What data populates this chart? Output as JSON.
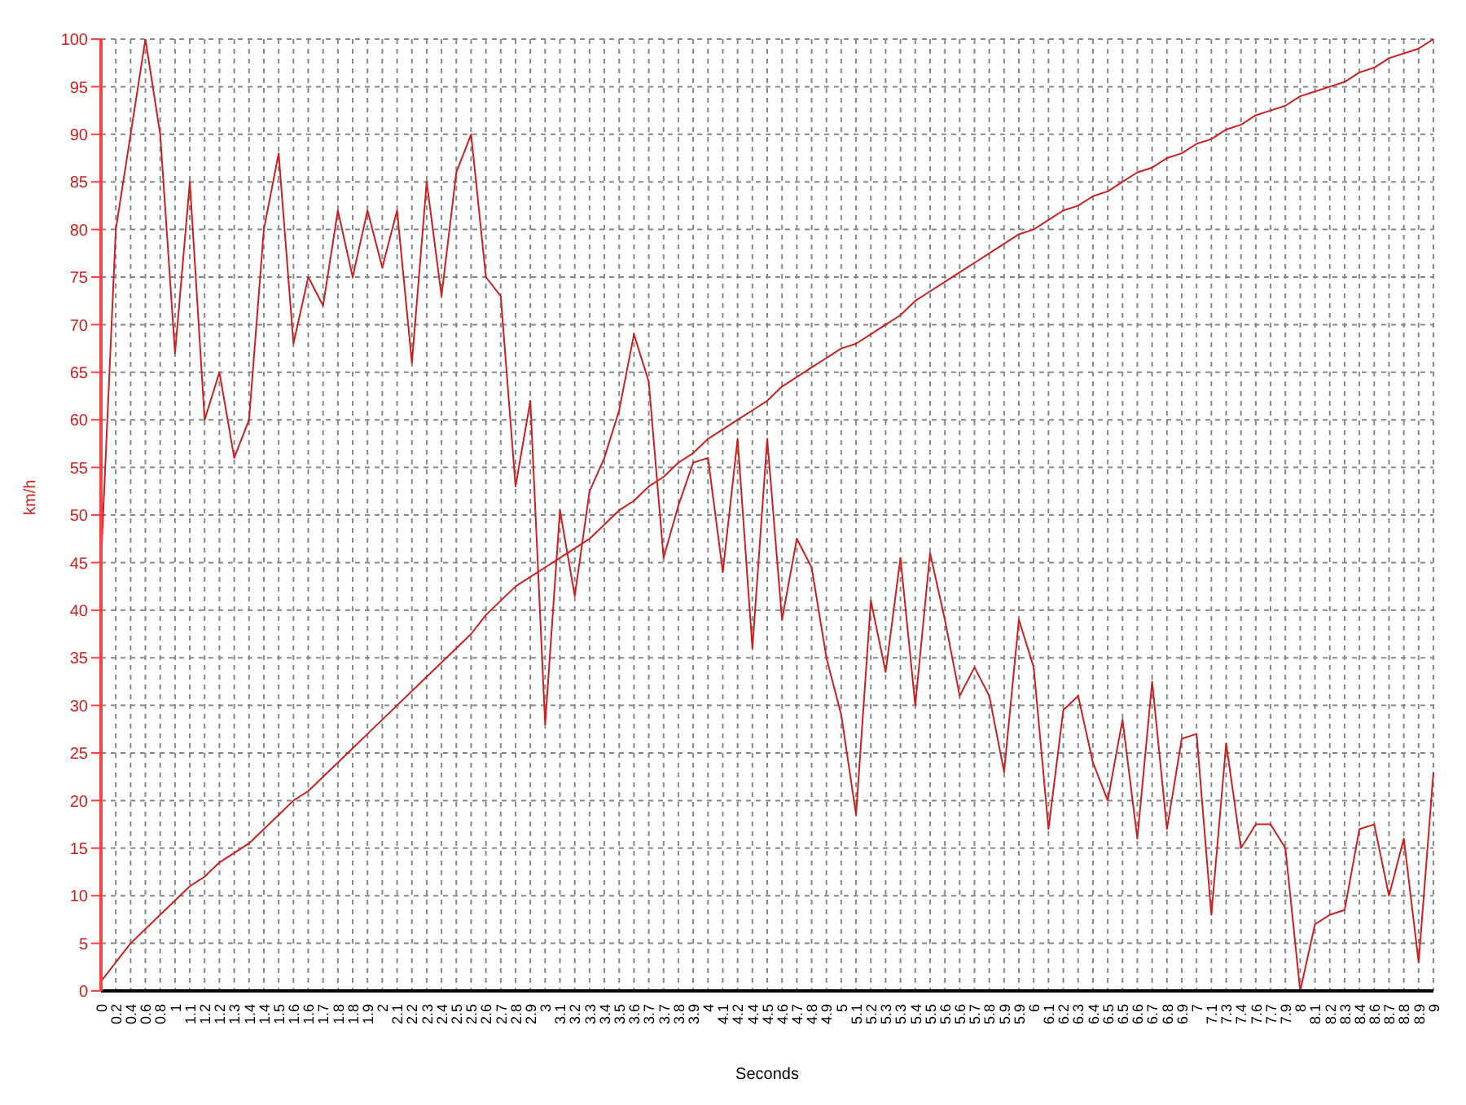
{
  "chart_data": {
    "type": "line",
    "xlabel": "Seconds",
    "ylabel": "km/h",
    "categories": [
      "0",
      "0.2",
      "0.4",
      "0.6",
      "0.8",
      "1",
      "1.1",
      "1.2",
      "1.2",
      "1.3",
      "1.4",
      "1.4",
      "1.5",
      "1.6",
      "1.6",
      "1.7",
      "1.8",
      "1.8",
      "1.9",
      "2",
      "2.1",
      "2.2",
      "2.3",
      "2.4",
      "2.5",
      "2.5",
      "2.6",
      "2.7",
      "2.8",
      "2.9",
      "3",
      "3.1",
      "3.2",
      "3.3",
      "3.4",
      "3.5",
      "3.6",
      "3.7",
      "3.7",
      "3.8",
      "3.9",
      "4",
      "4.1",
      "4.2",
      "4.4",
      "4.5",
      "4.6",
      "4.7",
      "4.8",
      "4.9",
      "5",
      "5.1",
      "5.2",
      "5.3",
      "5.3",
      "5.4",
      "5.5",
      "5.6",
      "5.6",
      "5.7",
      "5.8",
      "5.9",
      "5.9",
      "6",
      "6.1",
      "6.2",
      "6.3",
      "6.4",
      "6.5",
      "6.5",
      "6.6",
      "6.7",
      "6.8",
      "6.9",
      "7",
      "7.1",
      "7.3",
      "7.4",
      "7.6",
      "7.7",
      "7.9",
      "8",
      "8.1",
      "8.2",
      "8.3",
      "8.4",
      "8.6",
      "8.7",
      "8.8",
      "8.9",
      "9"
    ],
    "series": [
      {
        "color": "#cc1f1f",
        "values": [
          45,
          80,
          90,
          100,
          90,
          67,
          85,
          60,
          65,
          56,
          60,
          80,
          88,
          68,
          75,
          72,
          82,
          75,
          82,
          76,
          82,
          66,
          85,
          73,
          86,
          90,
          75,
          73,
          53,
          62,
          28,
          50.5,
          41.5,
          52.5,
          56,
          61,
          69,
          64,
          45.5,
          51,
          55.5,
          56,
          44,
          58,
          36,
          58,
          39,
          47.5,
          44.5,
          35,
          29,
          18.5,
          41,
          33.5,
          45.5,
          30,
          46,
          39,
          31,
          34,
          31,
          23,
          39,
          34,
          17,
          29.5,
          31,
          24,
          20,
          28.5,
          16,
          32.5,
          17,
          26.5,
          27,
          8,
          26,
          15,
          17.5,
          17.5,
          15,
          0,
          7,
          8,
          8.5,
          17,
          17.5,
          10,
          16,
          3,
          23
        ]
      },
      {
        "color": "#cc1f1f",
        "values": [
          1,
          3,
          5,
          6.5,
          8,
          9.5,
          11,
          12,
          13.5,
          14.5,
          15.5,
          17,
          18.5,
          20,
          21,
          22.5,
          24,
          25.5,
          27,
          28.5,
          30,
          31.5,
          33,
          34.5,
          36,
          37.5,
          39.5,
          41,
          42.5,
          43.5,
          44.5,
          45.5,
          46.5,
          47.5,
          49,
          50.5,
          51.5,
          53,
          54,
          55.5,
          56.5,
          58,
          59,
          60,
          61,
          62,
          63.5,
          64.5,
          65.5,
          66.5,
          67.5,
          68,
          69,
          70,
          71,
          72.5,
          73.5,
          74.5,
          75.5,
          76.5,
          77.5,
          78.5,
          79.5,
          80,
          81,
          82,
          82.5,
          83.5,
          84,
          85,
          86,
          86.5,
          87.5,
          88,
          89,
          89.5,
          90.5,
          91,
          92,
          92.5,
          93,
          94,
          94.5,
          95,
          95.5,
          96.5,
          97,
          98,
          98.5,
          99,
          100
        ]
      }
    ],
    "ylim": [
      0,
      100
    ],
    "yticks": [
      0,
      5,
      10,
      15,
      20,
      25,
      30,
      35,
      40,
      45,
      50,
      55,
      60,
      65,
      70,
      75,
      80,
      85,
      90,
      95,
      100
    ],
    "grid": true,
    "legend": false,
    "marker": "none",
    "line_style": "solid"
  }
}
